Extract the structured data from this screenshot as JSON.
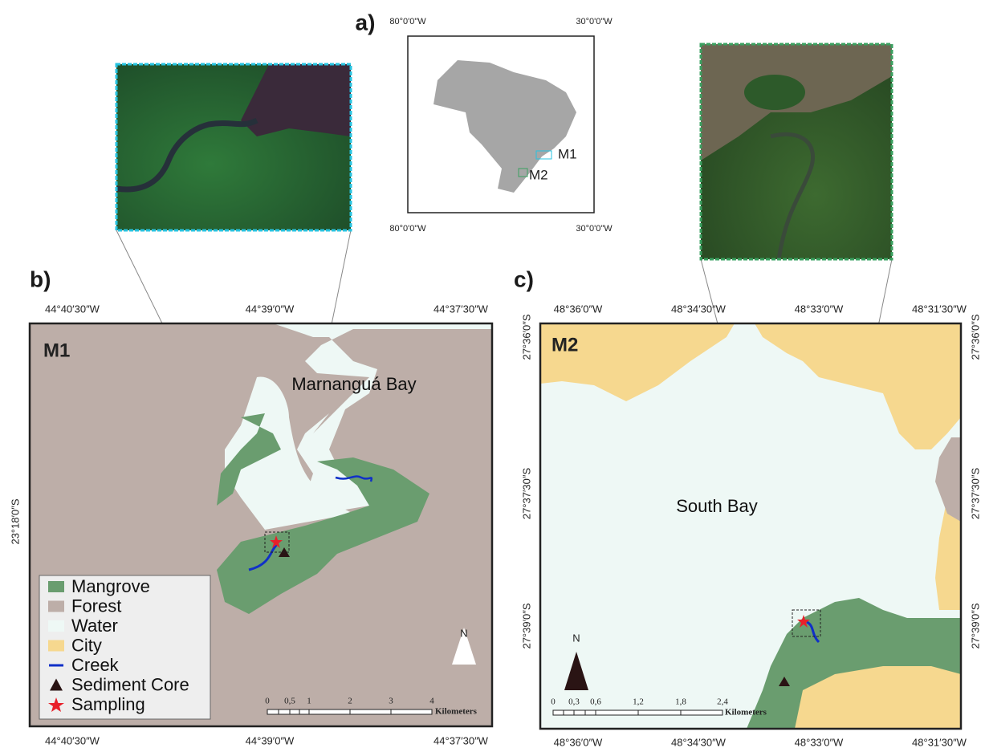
{
  "panel_a": {
    "label": "a)",
    "top_ticks": [
      "80°0'0\"W",
      "30°0'0\"W"
    ],
    "bottom_ticks": [
      "80°0'0\"W",
      "30°0'0\"W"
    ],
    "sites": [
      "M1",
      "M2"
    ]
  },
  "panel_b": {
    "label": "b)",
    "site": "M1",
    "place": "Marnanguá Bay",
    "top_ticks": [
      "44°40′30″W",
      "44°39′0″W",
      "44°37′30″W"
    ],
    "bottom_ticks": [
      "44°40′30″W",
      "44°39′0″W",
      "44°37′30″W"
    ],
    "left_ticks": [
      "23°18′0″S"
    ],
    "north": "N",
    "scale": {
      "ticks": [
        "0",
        "0,5",
        "1",
        "2",
        "3",
        "4"
      ],
      "unit": "Kilometers"
    },
    "legend": [
      {
        "label": "Mangrove",
        "color": "#6a9d6f"
      },
      {
        "label": "Forest",
        "color": "#bdaea8"
      },
      {
        "label": "Water",
        "color": "#eef8f5"
      },
      {
        "label": "City",
        "color": "#f6d88f"
      },
      {
        "label": "Creek",
        "color": "#1030c8"
      },
      {
        "label": "Sediment Core",
        "color": "#2a1414"
      },
      {
        "label": "Sampling",
        "color": "#e8202a"
      }
    ]
  },
  "panel_c": {
    "label": "c)",
    "site": "M2",
    "place": "South Bay",
    "top_ticks": [
      "48°36′0″W",
      "48°34′30″W",
      "48°33′0″W",
      "48°31′30″W"
    ],
    "bottom_ticks": [
      "48°36′0″W",
      "48°34′30″W",
      "48°33′0″W",
      "48°31′30″W"
    ],
    "left_ticks": [
      "27°36′0″S",
      "27°37′30″S",
      "27°39′0″S"
    ],
    "right_ticks": [
      "27°36′0″S",
      "27°37′30″S",
      "27°39′0″S"
    ],
    "north": "N",
    "scale": {
      "ticks": [
        "0",
        "0,3",
        "0,6",
        "1,2",
        "1,8",
        "2,4"
      ],
      "unit": "Kilometers"
    }
  }
}
